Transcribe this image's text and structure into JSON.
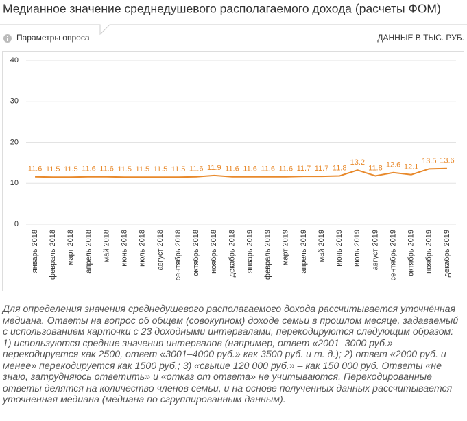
{
  "chart_data": {
    "type": "line",
    "title": "Медианное значение среднедушевого располагаемого дохода (расчеты ФОМ)",
    "survey_params_label": "Параметры опроса",
    "units_label": "ДАННЫЕ В ТЫС. РУБ.",
    "categories": [
      "январь 2018",
      "февраль 2018",
      "март 2018",
      "апрель 2018",
      "май 2018",
      "июнь 2018",
      "июль 2018",
      "август 2018",
      "сентябрь 2018",
      "октябрь 2018",
      "ноябрь 2018",
      "декабрь 2018",
      "январь 2019",
      "февраль 2019",
      "март 2019",
      "апрель 2019",
      "май 2019",
      "июнь 2019",
      "июль 2019",
      "август 2019",
      "сентябрь 2019",
      "октябрь 2019",
      "ноябрь 2019",
      "декабрь 2019"
    ],
    "values": [
      11.6,
      11.5,
      11.5,
      11.6,
      11.6,
      11.5,
      11.5,
      11.5,
      11.5,
      11.6,
      11.9,
      11.6,
      11.6,
      11.6,
      11.6,
      11.7,
      11.7,
      11.8,
      13.2,
      11.8,
      12.6,
      12.1,
      13.5,
      13.6
    ],
    "color": "#e8892b",
    "ylim": [
      0,
      40
    ],
    "yticks": [
      0,
      10,
      20,
      30,
      40
    ],
    "grid": true,
    "note": "Для определения значения среднедушевого располагаемого дохода рассчитывается уточнённая медиана. Ответы на вопрос об общем (совокупном) доходе семьи в прошлом месяце, задаваемый с использованием карточки с 23 доходными интервалами, перекодируются следующим образом: 1) используются средние значения интервалов (например, ответ «2001–3000 руб.» перекодируется как 2500, ответ «3001–4000 руб.» как 3500 руб. и т. д.); 2) ответ «2000 руб. и менее» перекодируется как 1500 руб.; 3) «свыше 120 000 руб.» – как 150 000 руб. Ответы «не знаю, затрудняюсь ответить» и «отказ от ответа» не учитываются. Перекодированные ответы делятся на количество членов семьи, и на основе полученных данных рассчитывается уточненная медиана (медиана по сгруппированным данным)."
  }
}
